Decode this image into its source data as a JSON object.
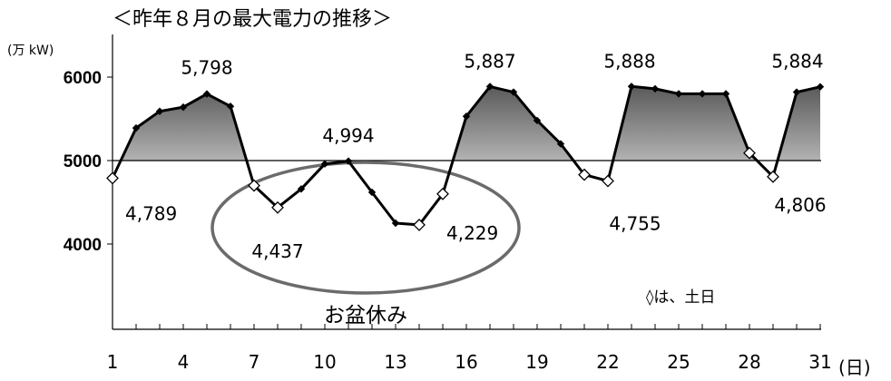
{
  "chart_data": {
    "type": "area",
    "title": "＜昨年８月の最大電力の推移＞",
    "ylabel": "(万 kW)",
    "xlabel": "(日)",
    "ylim": [
      3000,
      6500
    ],
    "baseline": 5000,
    "yticks": [
      4000,
      5000,
      6000
    ],
    "xticks": [
      1,
      4,
      7,
      10,
      13,
      16,
      19,
      22,
      25,
      28,
      31
    ],
    "x": [
      1,
      2,
      3,
      4,
      5,
      6,
      7,
      8,
      9,
      10,
      11,
      12,
      13,
      14,
      15,
      16,
      17,
      18,
      19,
      20,
      21,
      22,
      23,
      24,
      25,
      26,
      27,
      28,
      29,
      30,
      31
    ],
    "values": [
      4789,
      5390,
      5590,
      5640,
      5798,
      5650,
      4700,
      4437,
      4660,
      4960,
      4994,
      4620,
      4250,
      4229,
      4600,
      5530,
      5887,
      5820,
      5480,
      5200,
      4830,
      4755,
      5888,
      5860,
      5800,
      5800,
      5800,
      5090,
      4806,
      5820,
      5884
    ],
    "weekend_days": [
      1,
      7,
      8,
      14,
      15,
      21,
      22,
      28,
      29
    ],
    "colors": {
      "line": "#000000",
      "fill_dark": "#5a5a5a",
      "fill_light": "#ffffff",
      "ellipse": "#6b6b6b",
      "marker": "#000000"
    },
    "annotations": [
      {
        "day": 1,
        "text": "4,789"
      },
      {
        "day": 5,
        "text": "5,798"
      },
      {
        "day": 8,
        "text": "4,437"
      },
      {
        "day": 11,
        "text": "4,994"
      },
      {
        "day": 14,
        "text": "4,229"
      },
      {
        "day": 17,
        "text": "5,887"
      },
      {
        "day": 22,
        "text": "4,755"
      },
      {
        "day": 23,
        "text": "5,888"
      },
      {
        "day": 29,
        "text": "4,806"
      },
      {
        "day": 31,
        "text": "5,884"
      }
    ],
    "note": "お盆休み",
    "legend": "◊は、土日",
    "grid": false
  }
}
